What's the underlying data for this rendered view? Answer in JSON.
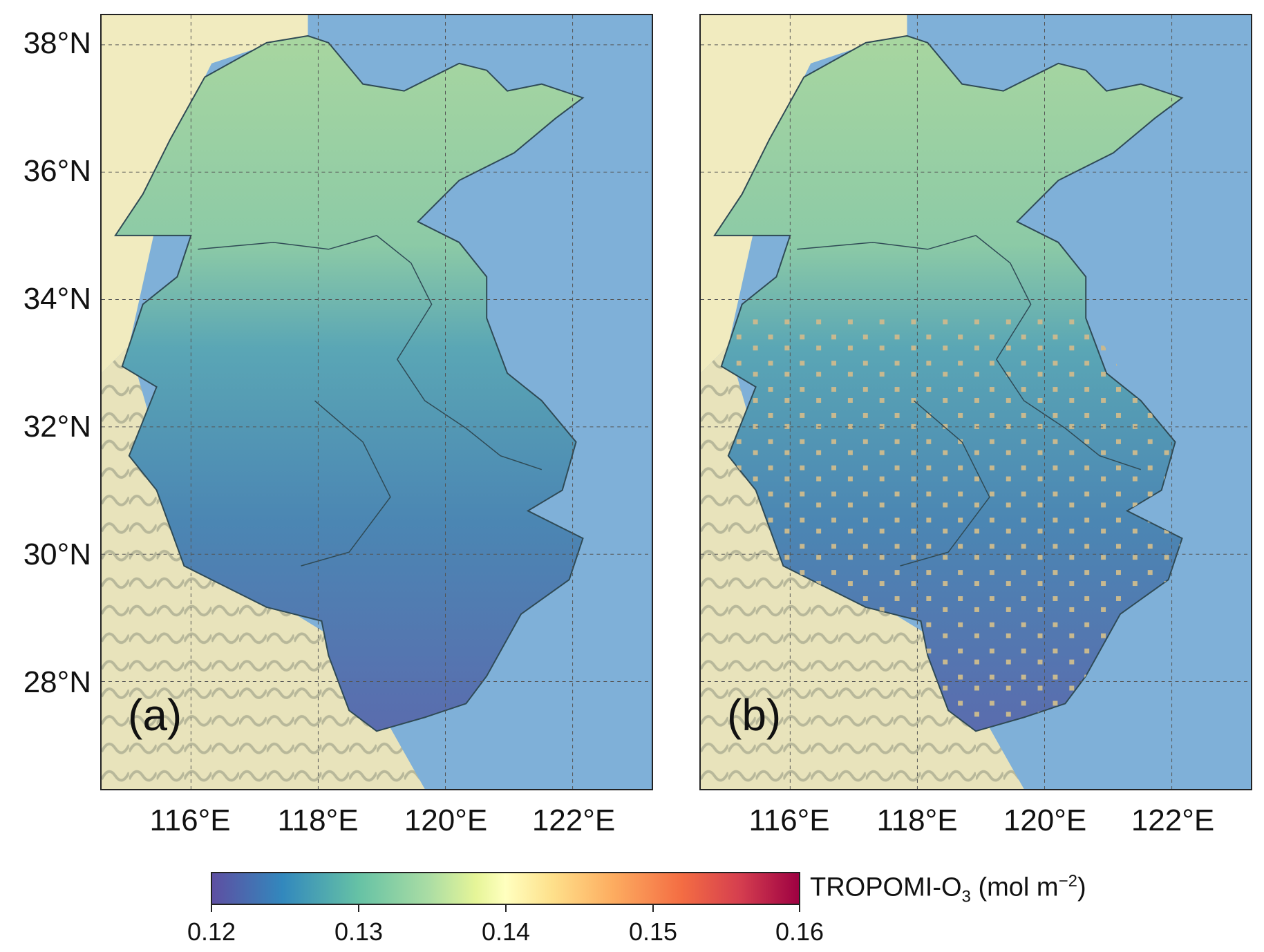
{
  "map": {
    "panels": [
      {
        "id": "a",
        "label": "(a)"
      },
      {
        "id": "b",
        "label": "(b)"
      }
    ],
    "latitude_labels": [
      "38°N",
      "36°N",
      "34°N",
      "32°N",
      "30°N",
      "28°N"
    ],
    "longitude_labels": [
      "116°E",
      "118°E",
      "120°E",
      "122°E"
    ],
    "colorbar": {
      "title_prefix": "TROPOMI-O",
      "title_subscript": "3",
      "title_units": " (mol m",
      "title_superscript": "−2",
      "title_suffix": ")",
      "ticks": [
        "0.12",
        "0.13",
        "0.14",
        "0.15",
        "0.16"
      ],
      "range": [
        0.12,
        0.16
      ]
    },
    "colors": {
      "sea": "#7fb0d8",
      "land": "#f1ebbf",
      "low": "#5b5ba8",
      "mid": "#4fa3b4",
      "high": "#a9d8a0",
      "missing": "#c8b98f"
    }
  }
}
